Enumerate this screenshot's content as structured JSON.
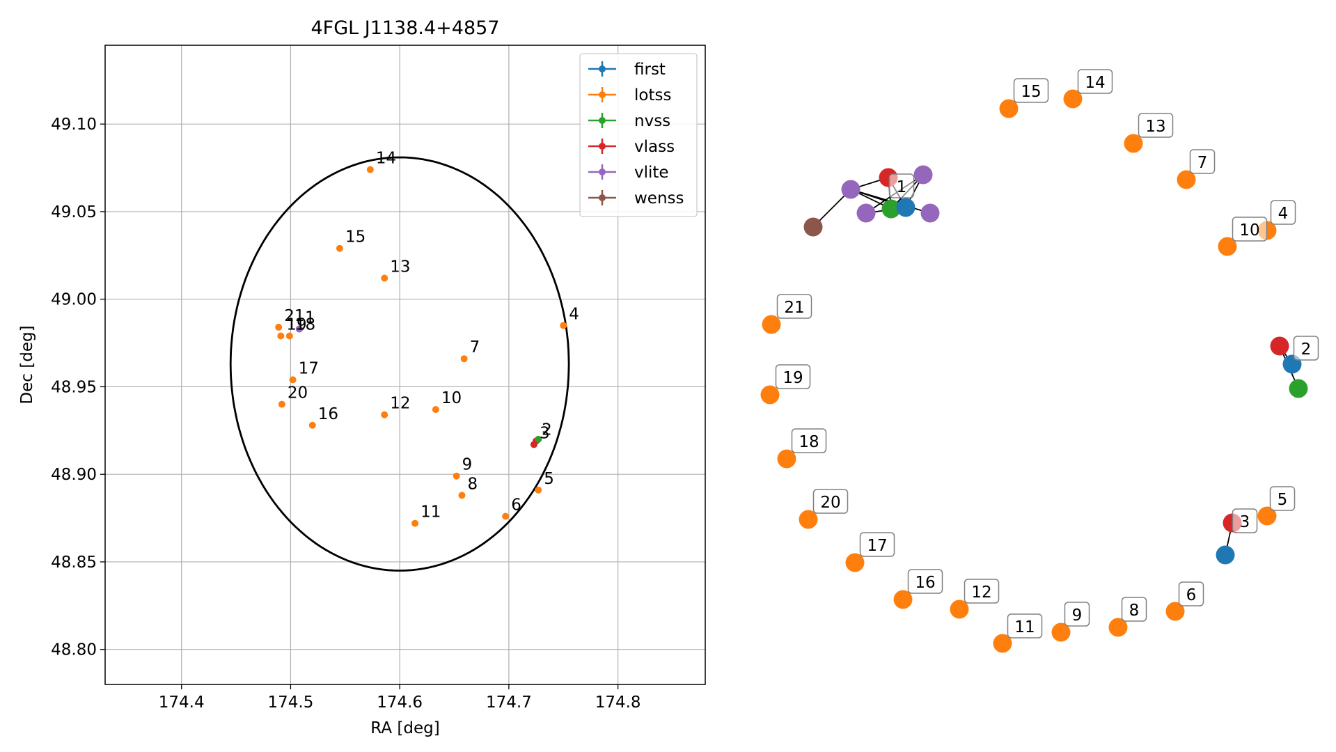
{
  "chart_data": [
    {
      "type": "scatter",
      "title": "4FGL J1138.4+4857",
      "xlabel": "RA [deg]",
      "ylabel": "Dec [deg]",
      "xlim": [
        174.33,
        174.88
      ],
      "ylim": [
        48.78,
        49.145
      ],
      "xticks": [
        174.4,
        174.5,
        174.6,
        174.7,
        174.8
      ],
      "xtick_labels": [
        "174.4",
        "174.5",
        "174.6",
        "174.7",
        "174.8"
      ],
      "yticks": [
        48.8,
        48.85,
        48.9,
        48.95,
        49.0,
        49.05,
        49.1
      ],
      "ytick_labels": [
        "48.80",
        "48.85",
        "48.90",
        "48.95",
        "49.00",
        "49.05",
        "49.10"
      ],
      "grid": true,
      "legend_position": "top-right",
      "legend": [
        {
          "name": "first",
          "color": "#1f77b4"
        },
        {
          "name": "lotss",
          "color": "#ff7f0e"
        },
        {
          "name": "nvss",
          "color": "#2ca02c"
        },
        {
          "name": "vlass",
          "color": "#d62728"
        },
        {
          "name": "vlite",
          "color": "#9467bd"
        },
        {
          "name": "wenss",
          "color": "#8c564b"
        }
      ],
      "ellipse": {
        "center": [
          174.6,
          48.963
        ],
        "ra_halfwidth": 0.155,
        "dec_halfheight": 0.118
      },
      "series": [
        {
          "name": "lotss",
          "color": "#ff7f0e",
          "points": [
            {
              "label": "4",
              "x": 174.75,
              "y": 48.985
            },
            {
              "label": "5",
              "x": 174.727,
              "y": 48.891
            },
            {
              "label": "6",
              "x": 174.697,
              "y": 48.876
            },
            {
              "label": "7",
              "x": 174.659,
              "y": 48.966
            },
            {
              "label": "8",
              "x": 174.657,
              "y": 48.888
            },
            {
              "label": "9",
              "x": 174.652,
              "y": 48.899
            },
            {
              "label": "10",
              "x": 174.633,
              "y": 48.937
            },
            {
              "label": "11",
              "x": 174.614,
              "y": 48.872
            },
            {
              "label": "12",
              "x": 174.586,
              "y": 48.934
            },
            {
              "label": "13",
              "x": 174.586,
              "y": 49.012
            },
            {
              "label": "14",
              "x": 174.573,
              "y": 49.074
            },
            {
              "label": "15",
              "x": 174.545,
              "y": 49.029
            },
            {
              "label": "16",
              "x": 174.52,
              "y": 48.928
            },
            {
              "label": "17",
              "x": 174.502,
              "y": 48.954
            },
            {
              "label": "18",
              "x": 174.499,
              "y": 48.979
            },
            {
              "label": "19",
              "x": 174.491,
              "y": 48.979
            },
            {
              "label": "20",
              "x": 174.492,
              "y": 48.94
            },
            {
              "label": "21",
              "x": 174.489,
              "y": 48.984
            }
          ]
        },
        {
          "name": "first",
          "color": "#1f77b4",
          "points": [
            {
              "label": "",
              "x": 174.508,
              "y": 48.983
            }
          ]
        },
        {
          "name": "vlite",
          "color": "#9467bd",
          "points": [
            {
              "label": "1",
              "x": 174.508,
              "y": 48.983
            }
          ]
        },
        {
          "name": "vlass",
          "color": "#d62728",
          "points": [
            {
              "label": "3",
              "x": 174.723,
              "y": 48.917
            },
            {
              "label": "2",
              "x": 174.725,
              "y": 48.919
            }
          ]
        },
        {
          "name": "nvss",
          "color": "#2ca02c",
          "points": [
            {
              "label": "",
              "x": 174.727,
              "y": 48.92
            }
          ]
        }
      ]
    },
    {
      "type": "network",
      "groups": [
        {
          "label": "1",
          "nodes": [
            {
              "id": "a",
              "color": "#d62728"
            },
            {
              "id": "b",
              "color": "#9467bd"
            },
            {
              "id": "c",
              "color": "#9467bd"
            },
            {
              "id": "d",
              "color": "#9467bd"
            },
            {
              "id": "e",
              "color": "#9467bd"
            },
            {
              "id": "f",
              "color": "#2ca02c"
            },
            {
              "id": "g",
              "color": "#1f77b4"
            },
            {
              "id": "h",
              "color": "#8c564b"
            }
          ]
        },
        {
          "label": "2",
          "nodes": [
            {
              "id": "a",
              "color": "#d62728"
            },
            {
              "id": "b",
              "color": "#1f77b4"
            },
            {
              "id": "c",
              "color": "#2ca02c"
            }
          ]
        },
        {
          "label": "3",
          "nodes": [
            {
              "id": "a",
              "color": "#d62728"
            },
            {
              "id": "b",
              "color": "#1f77b4"
            }
          ]
        },
        {
          "label": "4",
          "nodes": [
            {
              "id": "a",
              "color": "#ff7f0e"
            }
          ]
        },
        {
          "label": "5",
          "nodes": [
            {
              "id": "a",
              "color": "#ff7f0e"
            }
          ]
        },
        {
          "label": "6",
          "nodes": [
            {
              "id": "a",
              "color": "#ff7f0e"
            }
          ]
        },
        {
          "label": "7",
          "nodes": [
            {
              "id": "a",
              "color": "#ff7f0e"
            }
          ]
        },
        {
          "label": "8",
          "nodes": [
            {
              "id": "a",
              "color": "#ff7f0e"
            }
          ]
        },
        {
          "label": "9",
          "nodes": [
            {
              "id": "a",
              "color": "#ff7f0e"
            }
          ]
        },
        {
          "label": "10",
          "nodes": [
            {
              "id": "a",
              "color": "#ff7f0e"
            }
          ]
        },
        {
          "label": "11",
          "nodes": [
            {
              "id": "a",
              "color": "#ff7f0e"
            }
          ]
        },
        {
          "label": "12",
          "nodes": [
            {
              "id": "a",
              "color": "#ff7f0e"
            }
          ]
        },
        {
          "label": "13",
          "nodes": [
            {
              "id": "a",
              "color": "#ff7f0e"
            }
          ]
        },
        {
          "label": "14",
          "nodes": [
            {
              "id": "a",
              "color": "#ff7f0e"
            }
          ]
        },
        {
          "label": "15",
          "nodes": [
            {
              "id": "a",
              "color": "#ff7f0e"
            }
          ]
        },
        {
          "label": "16",
          "nodes": [
            {
              "id": "a",
              "color": "#ff7f0e"
            }
          ]
        },
        {
          "label": "17",
          "nodes": [
            {
              "id": "a",
              "color": "#ff7f0e"
            }
          ]
        },
        {
          "label": "18",
          "nodes": [
            {
              "id": "a",
              "color": "#ff7f0e"
            }
          ]
        },
        {
          "label": "19",
          "nodes": [
            {
              "id": "a",
              "color": "#ff7f0e"
            }
          ]
        },
        {
          "label": "20",
          "nodes": [
            {
              "id": "a",
              "color": "#ff7f0e"
            }
          ]
        },
        {
          "label": "21",
          "nodes": [
            {
              "id": "a",
              "color": "#ff7f0e"
            }
          ]
        }
      ]
    }
  ]
}
